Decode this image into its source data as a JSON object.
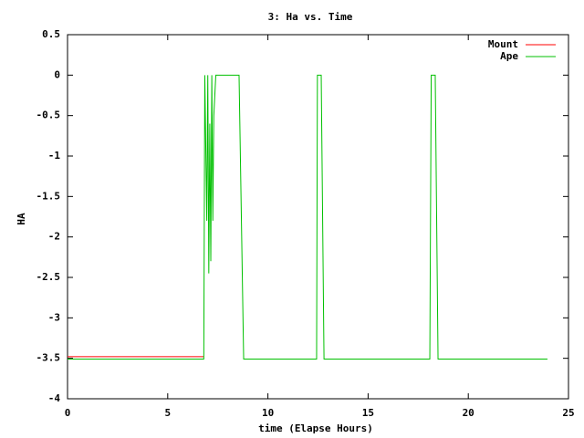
{
  "chart_data": {
    "type": "line",
    "title": "3: Ha vs. Time",
    "xlabel": "time (Elapse Hours)",
    "ylabel": "HA",
    "xlim": [
      0,
      25
    ],
    "xticks": [
      0,
      5,
      10,
      15,
      20,
      25
    ],
    "ylim": [
      -4,
      0.5
    ],
    "yticks": [
      0.5,
      0,
      -0.5,
      -1,
      -1.5,
      -2,
      -2.5,
      -3,
      -3.5,
      -4
    ],
    "grid": false,
    "legend": "top-right",
    "series": [
      {
        "name": "Mount",
        "color": "#ff0000",
        "x": [
          0,
          6.8
        ],
        "values": [
          -3.48,
          -3.48
        ]
      },
      {
        "name": "Ape",
        "color": "#00c000",
        "x": [
          0,
          6.8,
          6.85,
          6.9,
          6.95,
          7.0,
          7.05,
          7.1,
          7.15,
          7.2,
          7.25,
          7.3,
          7.4,
          8.56,
          8.79,
          12.43,
          12.47,
          12.66,
          12.8,
          18.08,
          18.15,
          18.35,
          18.49,
          23.95
        ],
        "values": [
          -3.51,
          -3.51,
          0,
          -0.9,
          -1.8,
          0,
          -2.45,
          -0.6,
          -2.3,
          0,
          -1.8,
          -0.5,
          0,
          0,
          -3.51,
          -3.51,
          0,
          0,
          -3.51,
          -3.51,
          0,
          0,
          -3.51,
          -3.51
        ]
      }
    ]
  }
}
